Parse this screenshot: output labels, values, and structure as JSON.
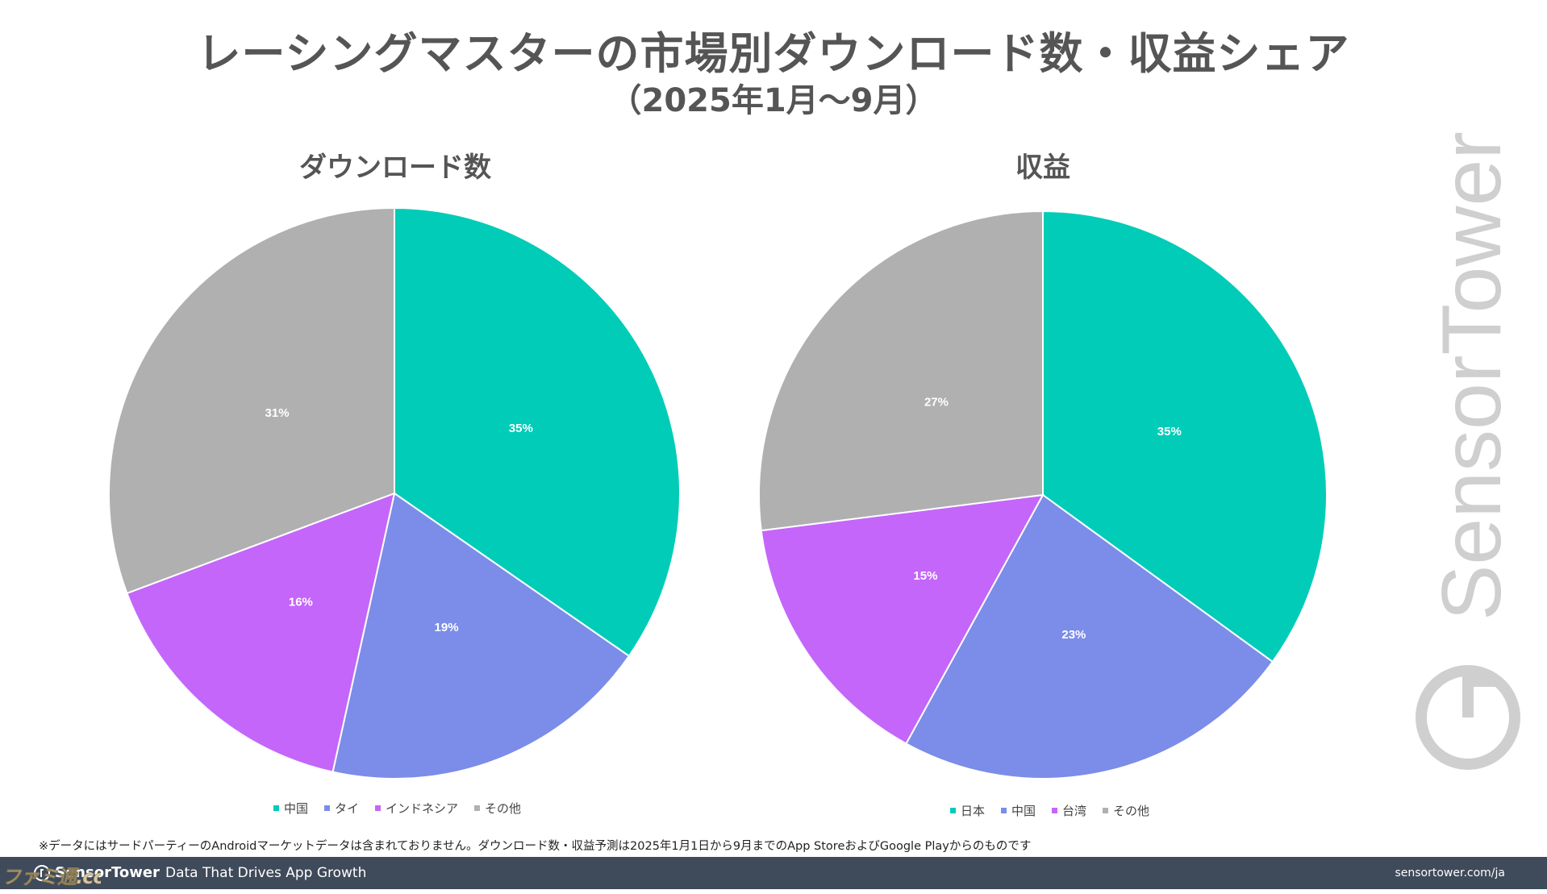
{
  "title": "レーシングマスターの市場別ダウンロード数・収益シェア",
  "subtitle": "（2025年1月〜9月）",
  "chart_data": [
    {
      "type": "pie",
      "title": "ダウンロード数",
      "categories": [
        "中国",
        "タイ",
        "インドネシア",
        "その他"
      ],
      "values": [
        35,
        19,
        16,
        31
      ],
      "labels": [
        "35%",
        "19%",
        "16%",
        "31%"
      ],
      "colors": [
        "#00ccb8",
        "#7b8de8",
        "#c466fa",
        "#b0b0b0"
      ],
      "legend_position": "bottom"
    },
    {
      "type": "pie",
      "title": "収益",
      "categories": [
        "日本",
        "中国",
        "台湾",
        "その他"
      ],
      "values": [
        35,
        23,
        15,
        27
      ],
      "labels": [
        "35%",
        "23%",
        "15%",
        "27%"
      ],
      "colors": [
        "#00ccb8",
        "#7b8de8",
        "#c466fa",
        "#b0b0b0"
      ],
      "legend_position": "bottom"
    }
  ],
  "footnote": "※データにはサードパーティーのAndroidマーケットデータは含まれておりません。ダウンロード数・収益予測は2025年1月1日から9月までのApp StoreおよびGoogle Playからのものです",
  "footer": {
    "brand": "SensorTower",
    "tagline": "Data That Drives App Growth",
    "url": "sensortower.com/ja"
  },
  "watermark": "SensorTower",
  "source_stamp": "ファミ通.com"
}
